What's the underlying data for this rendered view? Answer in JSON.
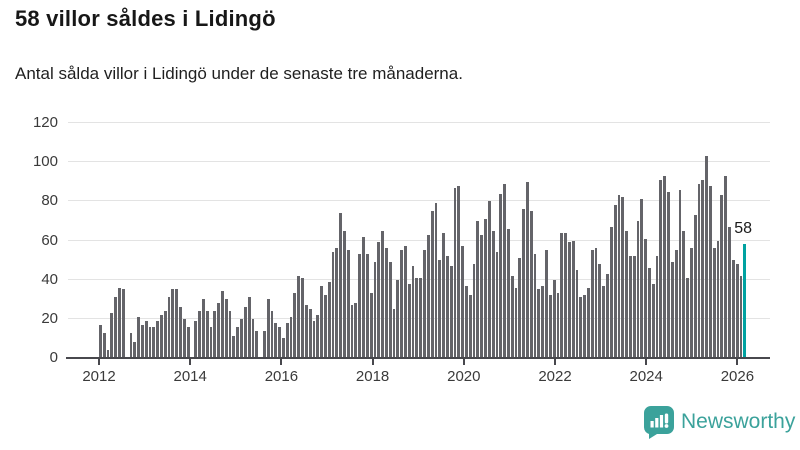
{
  "header": {
    "title": "58 villor såldes i Lidingö",
    "subtitle": "Antal sålda villor i Lidingö under de senaste tre månaderna."
  },
  "annotation": {
    "label": "58"
  },
  "logo": {
    "text": "Newsworthy"
  },
  "colors": {
    "bar": "#646469",
    "highlight": "#00a2a1",
    "grid": "#e3e3e3",
    "axis": "#48484d",
    "brand": "#3ba29b"
  },
  "chart_data": {
    "type": "bar",
    "title": "58 villor såldes i Lidingö",
    "xlabel": "",
    "ylabel": "",
    "x_start": "2012-01",
    "x_end": "2026-02",
    "ylim": [
      0,
      120
    ],
    "grid": true,
    "yticks": [
      0,
      20,
      40,
      60,
      80,
      100,
      120
    ],
    "xticks": [
      "2012",
      "2014",
      "2016",
      "2018",
      "2020",
      "2022",
      "2024",
      "2026"
    ],
    "xtick_month_index": [
      0,
      24,
      48,
      72,
      96,
      120,
      144,
      168
    ],
    "highlight_last": true,
    "last_value_label": "58",
    "values": [
      17,
      13,
      4,
      23,
      31,
      36,
      35,
      0,
      13,
      8,
      21,
      17,
      19,
      16,
      16,
      19,
      22,
      24,
      31,
      35,
      35,
      26,
      20,
      16,
      0,
      19,
      24,
      30,
      24,
      16,
      24,
      28,
      34,
      30,
      24,
      11,
      16,
      20,
      26,
      31,
      20,
      14,
      0,
      14,
      30,
      24,
      18,
      16,
      10,
      18,
      21,
      33,
      42,
      41,
      27,
      25,
      19,
      22,
      37,
      32,
      39,
      54,
      56,
      74,
      65,
      55,
      27,
      28,
      53,
      62,
      53,
      33,
      49,
      59,
      65,
      56,
      49,
      25,
      40,
      55,
      57,
      38,
      47,
      41,
      41,
      55,
      63,
      75,
      79,
      50,
      64,
      52,
      47,
      87,
      88,
      57,
      37,
      32,
      48,
      70,
      63,
      71,
      80,
      65,
      54,
      84,
      89,
      66,
      42,
      36,
      51,
      76,
      90,
      75,
      53,
      35,
      37,
      55,
      32,
      40,
      33,
      64,
      64,
      59,
      60,
      45,
      31,
      32,
      36,
      55,
      56,
      48,
      37,
      43,
      67,
      78,
      83,
      82,
      65,
      52,
      52,
      70,
      81,
      61,
      46,
      38,
      52,
      91,
      93,
      85,
      49,
      55,
      86,
      65,
      41,
      56,
      73,
      89,
      91,
      103,
      88,
      56,
      60,
      83,
      93,
      67,
      50,
      48,
      42,
      58
    ]
  }
}
